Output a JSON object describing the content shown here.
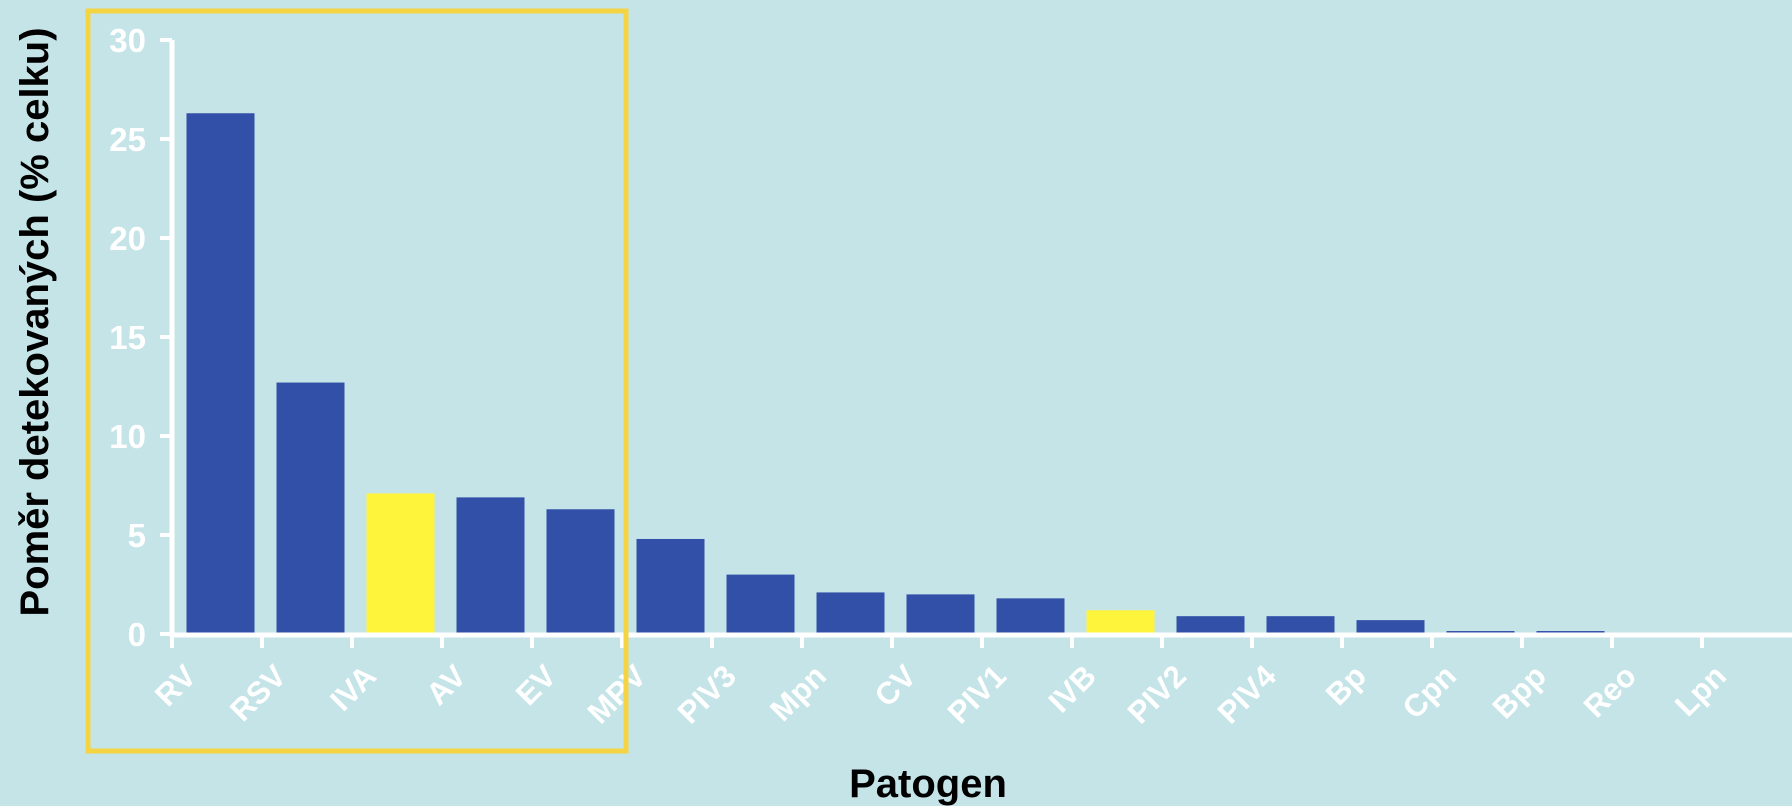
{
  "chart_data": {
    "type": "bar",
    "categories": [
      "RV",
      "RSV",
      "IVA",
      "AV",
      "EV",
      "MPV",
      "PIV3",
      "Mpn",
      "CV",
      "PIV1",
      "IVB",
      "PIV2",
      "PIV4",
      "Bp",
      "Cpn",
      "Bpp",
      "Reo",
      "Lpn"
    ],
    "values": [
      26.3,
      12.7,
      7.1,
      6.9,
      6.3,
      4.8,
      3.0,
      2.1,
      2.0,
      1.8,
      1.2,
      0.9,
      0.9,
      0.7,
      0.15,
      0.15,
      0,
      0
    ],
    "highlighted": [
      "IVA",
      "IVB"
    ],
    "xlabel": "Patogen",
    "ylabel": "Poměr detekovaných (% celku)",
    "ylim": [
      0,
      30
    ],
    "yticks": [
      0,
      5,
      10,
      15,
      20,
      25,
      30
    ],
    "grid": false,
    "legend": "none"
  },
  "colors": {
    "background": "#c5e4e8",
    "bar": "#3350a8",
    "highlight": "#fff43c",
    "axis": "#ffffff",
    "tick_label": "#ffffff",
    "axis_title": "#000000",
    "annotation_box": "#f5d443"
  }
}
